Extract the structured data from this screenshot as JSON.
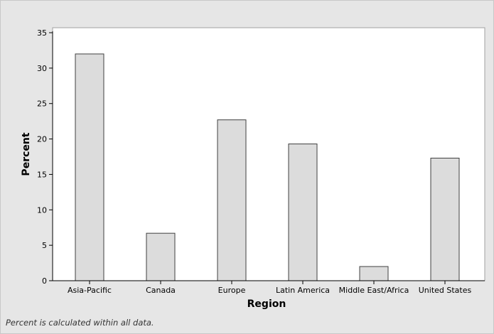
{
  "chart_data": {
    "type": "bar",
    "categories": [
      "Asia-Pacific",
      "Canada",
      "Europe",
      "Latin America",
      "Middle East/Africa",
      "United States"
    ],
    "values": [
      32.0,
      6.7,
      22.7,
      19.3,
      2.0,
      17.3
    ],
    "xlabel": "Region",
    "ylabel": "Percent",
    "ylim": [
      0,
      35
    ],
    "yticks": [
      0,
      5,
      10,
      15,
      20,
      25,
      30,
      35
    ],
    "grid": false,
    "legend": "none",
    "colors": {
      "bar_fill": "#dcdcdc",
      "bar_stroke": "#404040",
      "plot_background": "#ffffff",
      "frame_background": "#e6e6e6"
    }
  },
  "footnote": "Percent is calculated within all data."
}
